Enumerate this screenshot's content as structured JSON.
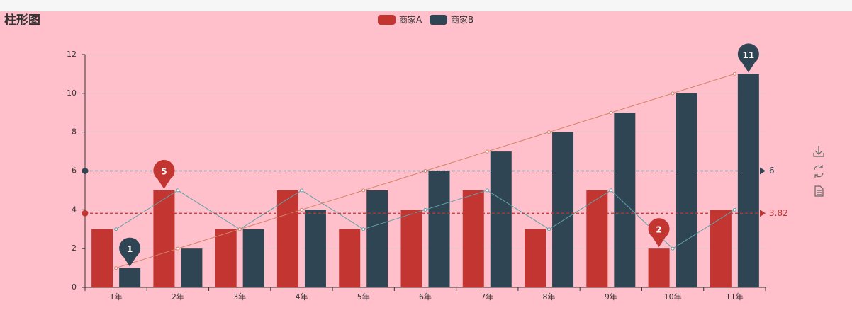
{
  "chart_data": {
    "type": "bar",
    "title": "柱形图",
    "categories": [
      "1年",
      "2年",
      "3年",
      "4年",
      "5年",
      "6年",
      "7年",
      "8年",
      "9年",
      "10年",
      "11年"
    ],
    "series": [
      {
        "name": "商家A",
        "color": "#c23531",
        "line_color": "#61a0a8",
        "values": [
          3,
          5,
          3,
          5,
          3,
          4,
          5,
          3,
          5,
          2,
          4
        ],
        "average": 3.82
      },
      {
        "name": "商家B",
        "color": "#2f4554",
        "line_color": "#d48265",
        "values": [
          1,
          2,
          3,
          4,
          5,
          6,
          7,
          8,
          9,
          10,
          11
        ],
        "average": 6
      }
    ],
    "mark_points": [
      "max",
      "min"
    ],
    "ylim": [
      0,
      12
    ],
    "yticks": [
      0,
      2,
      4,
      6,
      8,
      10,
      12
    ],
    "grid": true,
    "legend": "top"
  }
}
